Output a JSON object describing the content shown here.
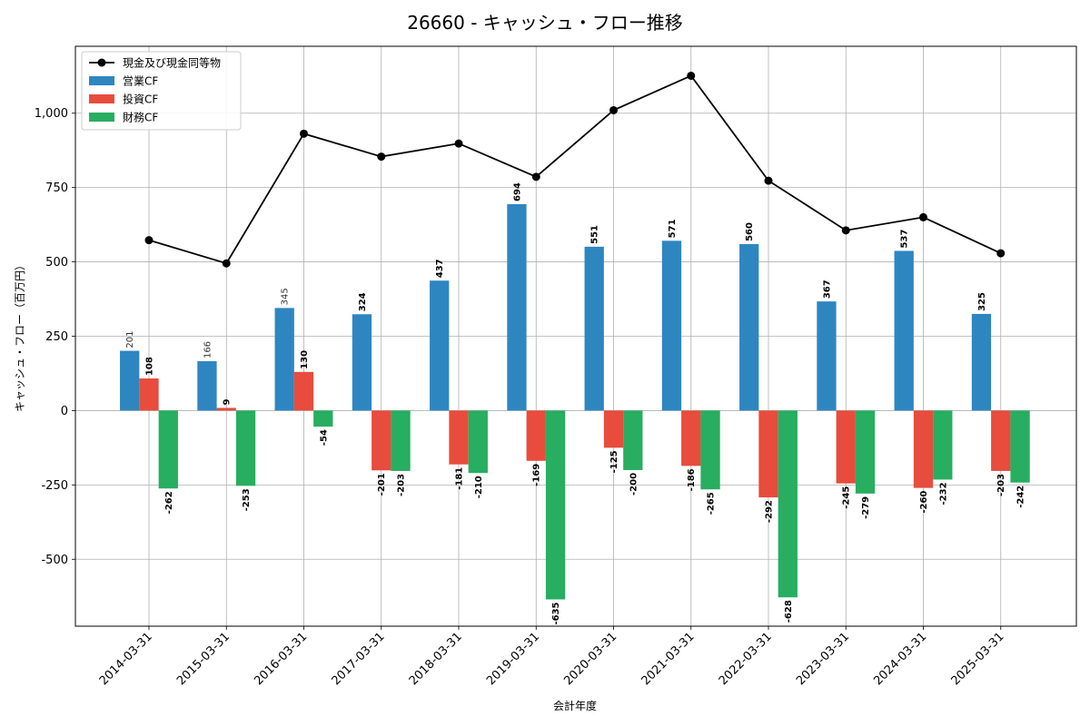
{
  "chart_data": {
    "type": "bar",
    "title": "26660 - キャッシュ・フロー推移",
    "xlabel": "会計年度",
    "ylabel": "キャッシュ・フロー（百万円）",
    "categories": [
      "2014-03-31",
      "2015-03-31",
      "2016-03-31",
      "2017-03-31",
      "2018-03-31",
      "2019-03-31",
      "2020-03-31",
      "2021-03-31",
      "2022-03-31",
      "2023-03-31",
      "2024-03-31",
      "2025-03-31"
    ],
    "yticks": [
      -500,
      -250,
      0,
      250,
      500,
      750,
      1000
    ],
    "ytick_labels": [
      "-500",
      "-250",
      "0",
      "250",
      "500",
      "750",
      "1,000"
    ],
    "ylim": [
      -725,
      1225
    ],
    "grid": true,
    "legend_position": "top-left",
    "series": [
      {
        "name": "営業CF",
        "kind": "bar",
        "color": "#2E86C1",
        "values": [
          201,
          166,
          345,
          324,
          437,
          694,
          551,
          571,
          560,
          367,
          537,
          325
        ]
      },
      {
        "name": "投資CF",
        "kind": "bar",
        "color": "#E74C3C",
        "values": [
          108,
          9,
          130,
          -201,
          -181,
          -169,
          -125,
          -186,
          -292,
          -245,
          -260,
          -203
        ]
      },
      {
        "name": "財務CF",
        "kind": "bar",
        "color": "#27AE60",
        "values": [
          -262,
          -253,
          -54,
          -203,
          -210,
          -635,
          -200,
          -265,
          -628,
          -279,
          -232,
          -242
        ]
      },
      {
        "name": "現金及び現金同等物",
        "kind": "line",
        "color": "#000000",
        "values": [
          573,
          495,
          931,
          854,
          898,
          786,
          1010,
          1126,
          773,
          606,
          650,
          529
        ]
      }
    ]
  }
}
